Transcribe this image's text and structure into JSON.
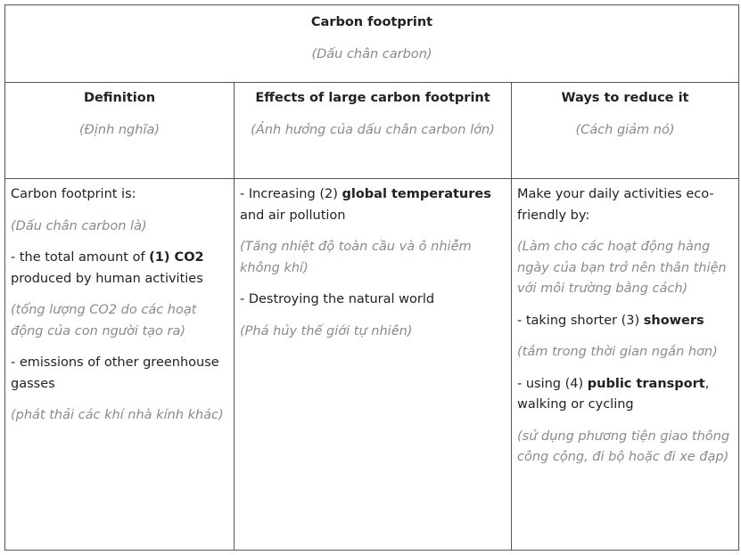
{
  "title": {
    "en": "Carbon footprint",
    "vi": "(Dấu chân carbon)"
  },
  "headers": [
    {
      "en": "Definition",
      "vi": "(Định nghĩa)"
    },
    {
      "en": "Effects of large carbon footprint",
      "vi": "(Ảnh hưởng của dấu chân carbon lớn)"
    },
    {
      "en": "Ways to reduce it",
      "vi": "(Cách giảm nó)"
    }
  ],
  "definition": {
    "intro": "Carbon footprint is:",
    "intro_vi": "(Dấu chân carbon là)",
    "item1_pre": "- the total amount of ",
    "item1_bold": "(1) CO2",
    "item1_post": " produced by human activities",
    "item1_vi": "(tổng lượng CO2 do các hoạt động của con người tạo ra)",
    "item2": "- emissions of other greenhouse gasses",
    "item2_vi": "(phát thải các khí nhà kính khác)"
  },
  "effects": {
    "item1_pre": "- Increasing (2) ",
    "item1_bold": "global temperatures",
    "item1_post": " and air pollution",
    "item1_vi": "(Tăng nhiệt độ toàn cầu và ô nhiễm không khí)",
    "item2": "- Destroying the natural world",
    "item2_vi": "(Phá hủy thế giới tự nhiên)"
  },
  "reduce": {
    "intro": "Make your daily activities eco-friendly by:",
    "intro_vi": "(Làm cho các hoạt động hàng ngày của bạn trở nên thân thiện với môi trường bằng cách)",
    "item1_pre": "- taking shorter (3) ",
    "item1_bold": "showers",
    "item1_vi": "(tắm trong thời gian ngắn hơn)",
    "item2_pre": "- using (4) ",
    "item2_bold": "public transport",
    "item2_post": ", walking or cycling",
    "item2_vi": "(sử dụng phương tiện giao thông công cộng, đi bộ hoặc đi xe đạp)"
  }
}
